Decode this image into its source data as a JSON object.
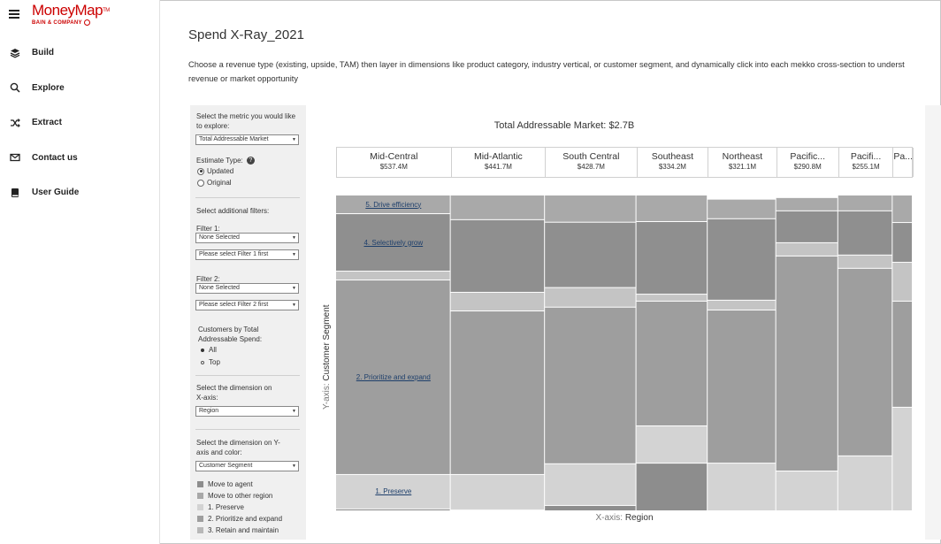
{
  "app": {
    "logo_name": "MoneyMap",
    "logo_tm": "TM",
    "logo_sub": "BAIN & COMPANY"
  },
  "nav": {
    "items": [
      {
        "label": "Build",
        "icon": "layers-icon"
      },
      {
        "label": "Explore",
        "icon": "search-icon"
      },
      {
        "label": "Extract",
        "icon": "shuffle-icon"
      },
      {
        "label": "Contact us",
        "icon": "mail-icon"
      },
      {
        "label": "User Guide",
        "icon": "book-icon"
      }
    ]
  },
  "page": {
    "title": "Spend X-Ray_2021",
    "description_line1": "Choose a revenue type (existing, upside, TAM) then layer in dimensions like product category, industry vertical, or customer segment, and dynamically click into each mekko cross-section to underst",
    "description_line2": "revenue or market opportunity"
  },
  "filters": {
    "metric_label": "Select the metric you would like to explore:",
    "metric_value": "Total Addressable Market",
    "estimate_label": "Estimate Type:",
    "estimate_options": [
      "Updated",
      "Original"
    ],
    "estimate_selected": "Updated",
    "additional_label": "Select additional filters:",
    "filter1_label": "Filter 1:",
    "filter1_value": "None Selected",
    "filter1_sub": "Please select Filter 1 first",
    "filter2_label": "Filter 2:",
    "filter2_value": "None Selected",
    "filter2_sub": "Please select Filter 2 first",
    "customers_label": "Customers by Total Addressable Spend:",
    "customers_options": [
      "All",
      "Top"
    ],
    "customers_selected": "All",
    "x_dim_label": "Select the dimension on X-axis:",
    "x_dim_value": "Region",
    "y_dim_label": "Select the dimension on Y-axis and color:",
    "y_dim_value": "Customer Segment",
    "legend": [
      {
        "label": "Move to agent",
        "color": "#8d8d8d"
      },
      {
        "label": "Move to other region",
        "color": "#a8a8a8"
      },
      {
        "label": "1. Preserve",
        "color": "#d3d3d3"
      },
      {
        "label": "2. Prioritize and expand",
        "color": "#9e9e9e"
      },
      {
        "label": "3. Retain and maintain",
        "color": "#b8b8b8"
      }
    ]
  },
  "chart_data": {
    "type": "mekko",
    "title_prefix": "Total Addressable Market:",
    "title_value": "$2.7B",
    "xlabel_key": "X-axis:",
    "xlabel": "Region",
    "ylabel_key": "Y-axis:",
    "ylabel": "Customer Segment",
    "columns": [
      {
        "name": "Mid-Central",
        "value_label": "$537.4M",
        "value": 537.4,
        "segments": [
          {
            "name": "Move to agent",
            "share": 0.006,
            "color": "#8d8d8d"
          },
          {
            "name": "1. Preserve",
            "share": 0.109,
            "color": "#d3d3d3"
          },
          {
            "name": "2. Prioritize and expand",
            "share": 0.616,
            "color": "#9e9e9e"
          },
          {
            "name": "3. Retain and maintain",
            "share": 0.028,
            "color": "#c4c4c4"
          },
          {
            "name": "4. Selectively grow",
            "share": 0.182,
            "color": "#8f8f8f"
          },
          {
            "name": "5. Drive efficiency",
            "share": 0.059,
            "color": "#a9a9a9"
          }
        ]
      },
      {
        "name": "Mid-Atlantic",
        "value_label": "$441.7M",
        "value": 441.7,
        "segments": [
          {
            "name": "Move to agent",
            "share": 0.003,
            "color": "#8d8d8d"
          },
          {
            "name": "1. Preserve",
            "share": 0.112,
            "color": "#d3d3d3"
          },
          {
            "name": "2. Prioritize and expand",
            "share": 0.518,
            "color": "#9e9e9e"
          },
          {
            "name": "3. Retain and maintain",
            "share": 0.059,
            "color": "#c4c4c4"
          },
          {
            "name": "4. Selectively grow",
            "share": 0.23,
            "color": "#8f8f8f"
          },
          {
            "name": "5. Drive efficiency",
            "share": 0.078,
            "color": "#a9a9a9"
          }
        ]
      },
      {
        "name": "South Central",
        "value_label": "$428.7M",
        "value": 428.7,
        "segments": [
          {
            "name": "Move to agent",
            "share": 0.017,
            "color": "#8d8d8d"
          },
          {
            "name": "1. Preserve",
            "share": 0.132,
            "color": "#d3d3d3"
          },
          {
            "name": "2. Prioritize and expand",
            "share": 0.496,
            "color": "#9e9e9e"
          },
          {
            "name": "3. Retain and maintain",
            "share": 0.062,
            "color": "#c4c4c4"
          },
          {
            "name": "4. Selectively grow",
            "share": 0.207,
            "color": "#8f8f8f"
          },
          {
            "name": "5. Drive efficiency",
            "share": 0.086,
            "color": "#a9a9a9"
          }
        ]
      },
      {
        "name": "Southeast",
        "value_label": "$334.2M",
        "value": 334.2,
        "segments": [
          {
            "name": "Move to agent",
            "share": 0.151,
            "color": "#8d8d8d"
          },
          {
            "name": "1. Preserve",
            "share": 0.118,
            "color": "#d3d3d3"
          },
          {
            "name": "2. Prioritize and expand",
            "share": 0.395,
            "color": "#9e9e9e"
          },
          {
            "name": "3. Retain and maintain",
            "share": 0.022,
            "color": "#c4c4c4"
          },
          {
            "name": "4. Selectively grow",
            "share": 0.23,
            "color": "#8f8f8f"
          },
          {
            "name": "5. Drive efficiency",
            "share": 0.084,
            "color": "#a9a9a9"
          }
        ]
      },
      {
        "name": "Northeast",
        "value_label": "$321.1M",
        "value": 321.1,
        "segments": [
          {
            "name": "1. Preserve",
            "share": 0.151,
            "color": "#d3d3d3"
          },
          {
            "name": "2. Prioritize and expand",
            "share": 0.485,
            "color": "#9e9e9e"
          },
          {
            "name": "3. Retain and maintain",
            "share": 0.031,
            "color": "#c4c4c4"
          },
          {
            "name": "4. Selectively grow",
            "share": 0.258,
            "color": "#8f8f8f"
          },
          {
            "name": "5. Drive efficiency",
            "share": 0.062,
            "color": "#a9a9a9"
          }
        ]
      },
      {
        "name": "Pacific...",
        "value_label": "$290.8M",
        "value": 290.8,
        "segments": [
          {
            "name": "1. Preserve",
            "share": 0.126,
            "color": "#d3d3d3"
          },
          {
            "name": "2. Prioritize and expand",
            "share": 0.681,
            "color": "#9e9e9e"
          },
          {
            "name": "3. Retain and maintain",
            "share": 0.042,
            "color": "#c4c4c4"
          },
          {
            "name": "4. Selectively grow",
            "share": 0.101,
            "color": "#8f8f8f"
          },
          {
            "name": "5. Drive efficiency",
            "share": 0.042,
            "color": "#a9a9a9"
          }
        ]
      },
      {
        "name": "Pacifi...",
        "value_label": "$255.1M",
        "value": 255.1,
        "segments": [
          {
            "name": "1. Preserve",
            "share": 0.174,
            "color": "#d3d3d3"
          },
          {
            "name": "2. Prioritize and expand",
            "share": 0.594,
            "color": "#9e9e9e"
          },
          {
            "name": "3. Retain and maintain",
            "share": 0.042,
            "color": "#c4c4c4"
          },
          {
            "name": "4. Selectively grow",
            "share": 0.14,
            "color": "#8f8f8f"
          },
          {
            "name": "5. Drive efficiency",
            "share": 0.05,
            "color": "#a9a9a9"
          }
        ]
      },
      {
        "name": "Pa...",
        "value_label": "",
        "value": 94.0,
        "segments": [
          {
            "name": "1. Preserve",
            "share": 0.328,
            "color": "#d3d3d3"
          },
          {
            "name": "2. Prioritize and expand",
            "share": 0.336,
            "color": "#9e9e9e"
          },
          {
            "name": "3. Retain and maintain",
            "share": 0.123,
            "color": "#c4c4c4"
          },
          {
            "name": "4. Selectively grow",
            "share": 0.126,
            "color": "#8f8f8f"
          },
          {
            "name": "5. Drive efficiency",
            "share": 0.087,
            "color": "#a9a9a9"
          }
        ]
      }
    ],
    "segment_labels": [
      "1. Preserve",
      "2. Prioritize and expand",
      "4. Selectively grow",
      "5. Drive efficiency"
    ]
  }
}
